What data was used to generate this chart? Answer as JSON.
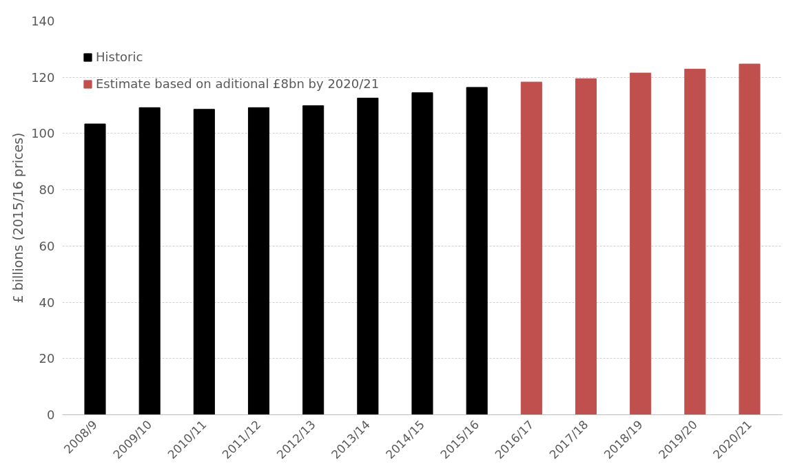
{
  "chart_data": {
    "type": "bar",
    "ylabel": "£ billions (2015/16 prices)",
    "categories": [
      "2008/9",
      "2009/10",
      "2010/11",
      "2011/12",
      "2012/13",
      "2013/14",
      "2014/15",
      "2015/16",
      "2016/17",
      "2017/18",
      "2018/19",
      "2019/20",
      "2020/21"
    ],
    "series": [
      {
        "name": "Historic",
        "color": "#000000",
        "values": [
          103.4,
          109.2,
          108.6,
          109.2,
          109.9,
          112.6,
          114.5,
          116.4,
          null,
          null,
          null,
          null,
          null
        ]
      },
      {
        "name": "Estimate based on aditional £8bn by 2020/21",
        "color": "#c0504d",
        "values": [
          null,
          null,
          null,
          null,
          null,
          null,
          null,
          null,
          118.3,
          119.5,
          121.5,
          122.9,
          124.7
        ]
      }
    ],
    "ylim": [
      0,
      140
    ],
    "yticks": [
      0,
      20,
      40,
      60,
      80,
      100,
      120,
      140
    ],
    "grid": "y",
    "legend": "top left"
  }
}
